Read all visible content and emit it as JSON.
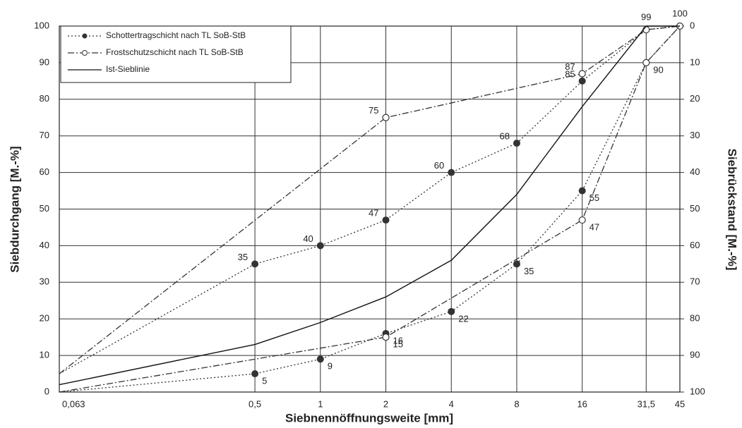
{
  "chart_data": {
    "type": "line",
    "x_label": "Siebnennöffnungsweite [mm]",
    "y_label": "Siebdurchgang [M.-%]",
    "y2_label": "Siebrückstand [M.-%]",
    "log_x": true,
    "grid": true,
    "legend": "upper left",
    "xlim": [
      0.063,
      45
    ],
    "xticks": [
      {
        "value": 0.063,
        "label": "0,063"
      },
      {
        "value": 0.5,
        "label": "0,5"
      },
      1,
      2,
      4,
      8,
      16,
      {
        "value": 31.5,
        "label": "31,5"
      },
      45
    ],
    "ylim": [
      0,
      100
    ],
    "yticks": [
      0,
      10,
      20,
      30,
      40,
      50,
      60,
      70,
      80,
      90,
      100
    ],
    "y2lim": [
      100,
      0
    ],
    "y2ticks": [
      0,
      10,
      20,
      30,
      40,
      50,
      60,
      70,
      80,
      90,
      100
    ],
    "series": [
      {
        "name": "Schottertragschicht nach TL SoB-StB",
        "color": "#333333",
        "dash": "2,3",
        "marker": "filled",
        "curves": [
          {
            "x": [
              0.063,
              0.5,
              1,
              2,
              4,
              8,
              16,
              31.5,
              45
            ],
            "values": [
              5,
              35,
              40,
              47,
              60,
              68,
              85,
              99,
              100
            ],
            "value_labels": [
              null,
              "35",
              "40",
              "47",
              "60",
              "68",
              "85",
              null,
              null
            ]
          },
          {
            "x": [
              0.063,
              0.5,
              1,
              2,
              4,
              8,
              16,
              31.5,
              45
            ],
            "values": [
              0,
              5,
              9,
              16,
              22,
              35,
              55,
              90,
              100
            ],
            "value_labels": [
              null,
              "5",
              "9",
              "16",
              "22",
              "35",
              "55",
              null,
              null
            ]
          }
        ]
      },
      {
        "name": "Frostschutzschicht nach TL SoB-StB",
        "color": "#333333",
        "dash": "9,3,2,3",
        "marker": "open",
        "curves": [
          {
            "x": [
              0.063,
              2,
              16,
              31.5,
              45
            ],
            "values": [
              5,
              75,
              87,
              99,
              100
            ],
            "value_labels": [
              null,
              "75",
              "87",
              "99",
              "100"
            ]
          },
          {
            "x": [
              0.063,
              2,
              16,
              31.5,
              45
            ],
            "values": [
              0,
              15,
              47,
              90,
              100
            ],
            "value_labels": [
              null,
              "15",
              "47",
              "90",
              null
            ]
          }
        ]
      },
      {
        "name": "Ist-Sieblinie",
        "color": "#111111",
        "dash": "none",
        "marker": "none",
        "curves": [
          {
            "x": [
              0.063,
              0.5,
              1,
              2,
              4,
              8,
              16,
              31.5,
              45
            ],
            "values": [
              2,
              13,
              19,
              26,
              36,
              54,
              78,
              100,
              100
            ]
          }
        ]
      }
    ]
  }
}
